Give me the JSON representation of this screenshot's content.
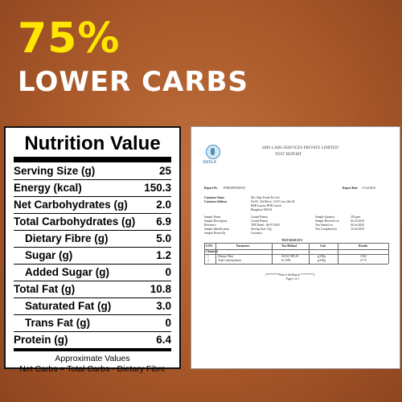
{
  "headline": {
    "line1": "75%",
    "line2": "LOWER CARBS",
    "line1_color": "#ffe600",
    "line2_color": "#ffffff"
  },
  "nutrition": {
    "title": "Nutrition Value",
    "rows": [
      {
        "label": "Serving Size (g)",
        "value": "25"
      },
      {
        "label": "Energy (kcal)",
        "value": "150.3"
      },
      {
        "label": "Net Carbohydrates (g)",
        "value": "2.0"
      },
      {
        "label": "Total Carbohydrates (g)",
        "value": "6.9"
      },
      {
        "label": "Dietary Fibre (g)",
        "value": "5.0"
      },
      {
        "label": "Sugar (g)",
        "value": "1.2"
      },
      {
        "label": "Added Sugar (g)",
        "value": "0"
      },
      {
        "label": "Total Fat (g)",
        "value": "10.8"
      },
      {
        "label": "Saturated Fat (g)",
        "value": "3.0"
      },
      {
        "label": "Trans Fat (g)",
        "value": "0"
      },
      {
        "label": "Protein (g)",
        "value": "6.4"
      }
    ],
    "note1": "Approximate Values",
    "note2": "Net Carbs = Total Carbs - Dietary Fibre"
  },
  "report": {
    "logo_text": "SMSLA",
    "company": "SMS LABS SERVICES PRIVATE LIMITED",
    "subtitle": "TEST REPORT",
    "report_no_label": "Report No.",
    "report_no": "FDR/20070040-05",
    "report_date_label": "Report Date",
    "report_date": "10 Jul 2020",
    "customer_name_label": "Customer Name",
    "customer_name": "M/s. Bajo Foods Pvt Ltd",
    "customer_address_label": "Customer Address",
    "customer_address_1": "No:9C, 3rd Block, 14 D Cross, 8th+B",
    "customer_address_2": "HSR Layout, HSR Layout",
    "customer_address_3": "Bangalore 560102",
    "sample_name_label": "Sample Name",
    "sample_name": "Coated Peanut",
    "sample_desc_label": "Sample Description",
    "sample_desc": "Coated Peanut",
    "reference_label": "Reference",
    "reference": "TRF Dated : 04-07-2020",
    "sample_mfg_label": "Sample Identification",
    "sample_mfg": "Serving Size: 25g",
    "sample_drawn_label": "Sample Drawn By",
    "sample_drawn": "Customer",
    "qty_label": "Sample Quantity",
    "qty": "250 gms",
    "received_label": "Sample Received on",
    "received": "04 Jul 2020",
    "started_label": "Test Started on",
    "started": "06 Jul 2020",
    "completed_label": "Test Completed on",
    "completed": "10 Jul 2020",
    "results_title": "TEST RESULTS",
    "col_sno": "S.NO",
    "col_param": "Parameter",
    "col_method": "Test Method",
    "col_unit": "Unit",
    "col_result": "Results",
    "section": "Chemical",
    "results": [
      {
        "sno": "1",
        "param": "Dietary Fibre",
        "method": "AOAC 985.29",
        "unit": "g/100g",
        "result": "19.82"
      },
      {
        "sno": "2",
        "param": "Total Carbohydrates",
        "method": "IS 1656",
        "unit": "g/100g",
        "result": "27.73"
      }
    ],
    "end_text": "(*********End of the Report *********)",
    "page_text": "Page 1 of 1"
  }
}
